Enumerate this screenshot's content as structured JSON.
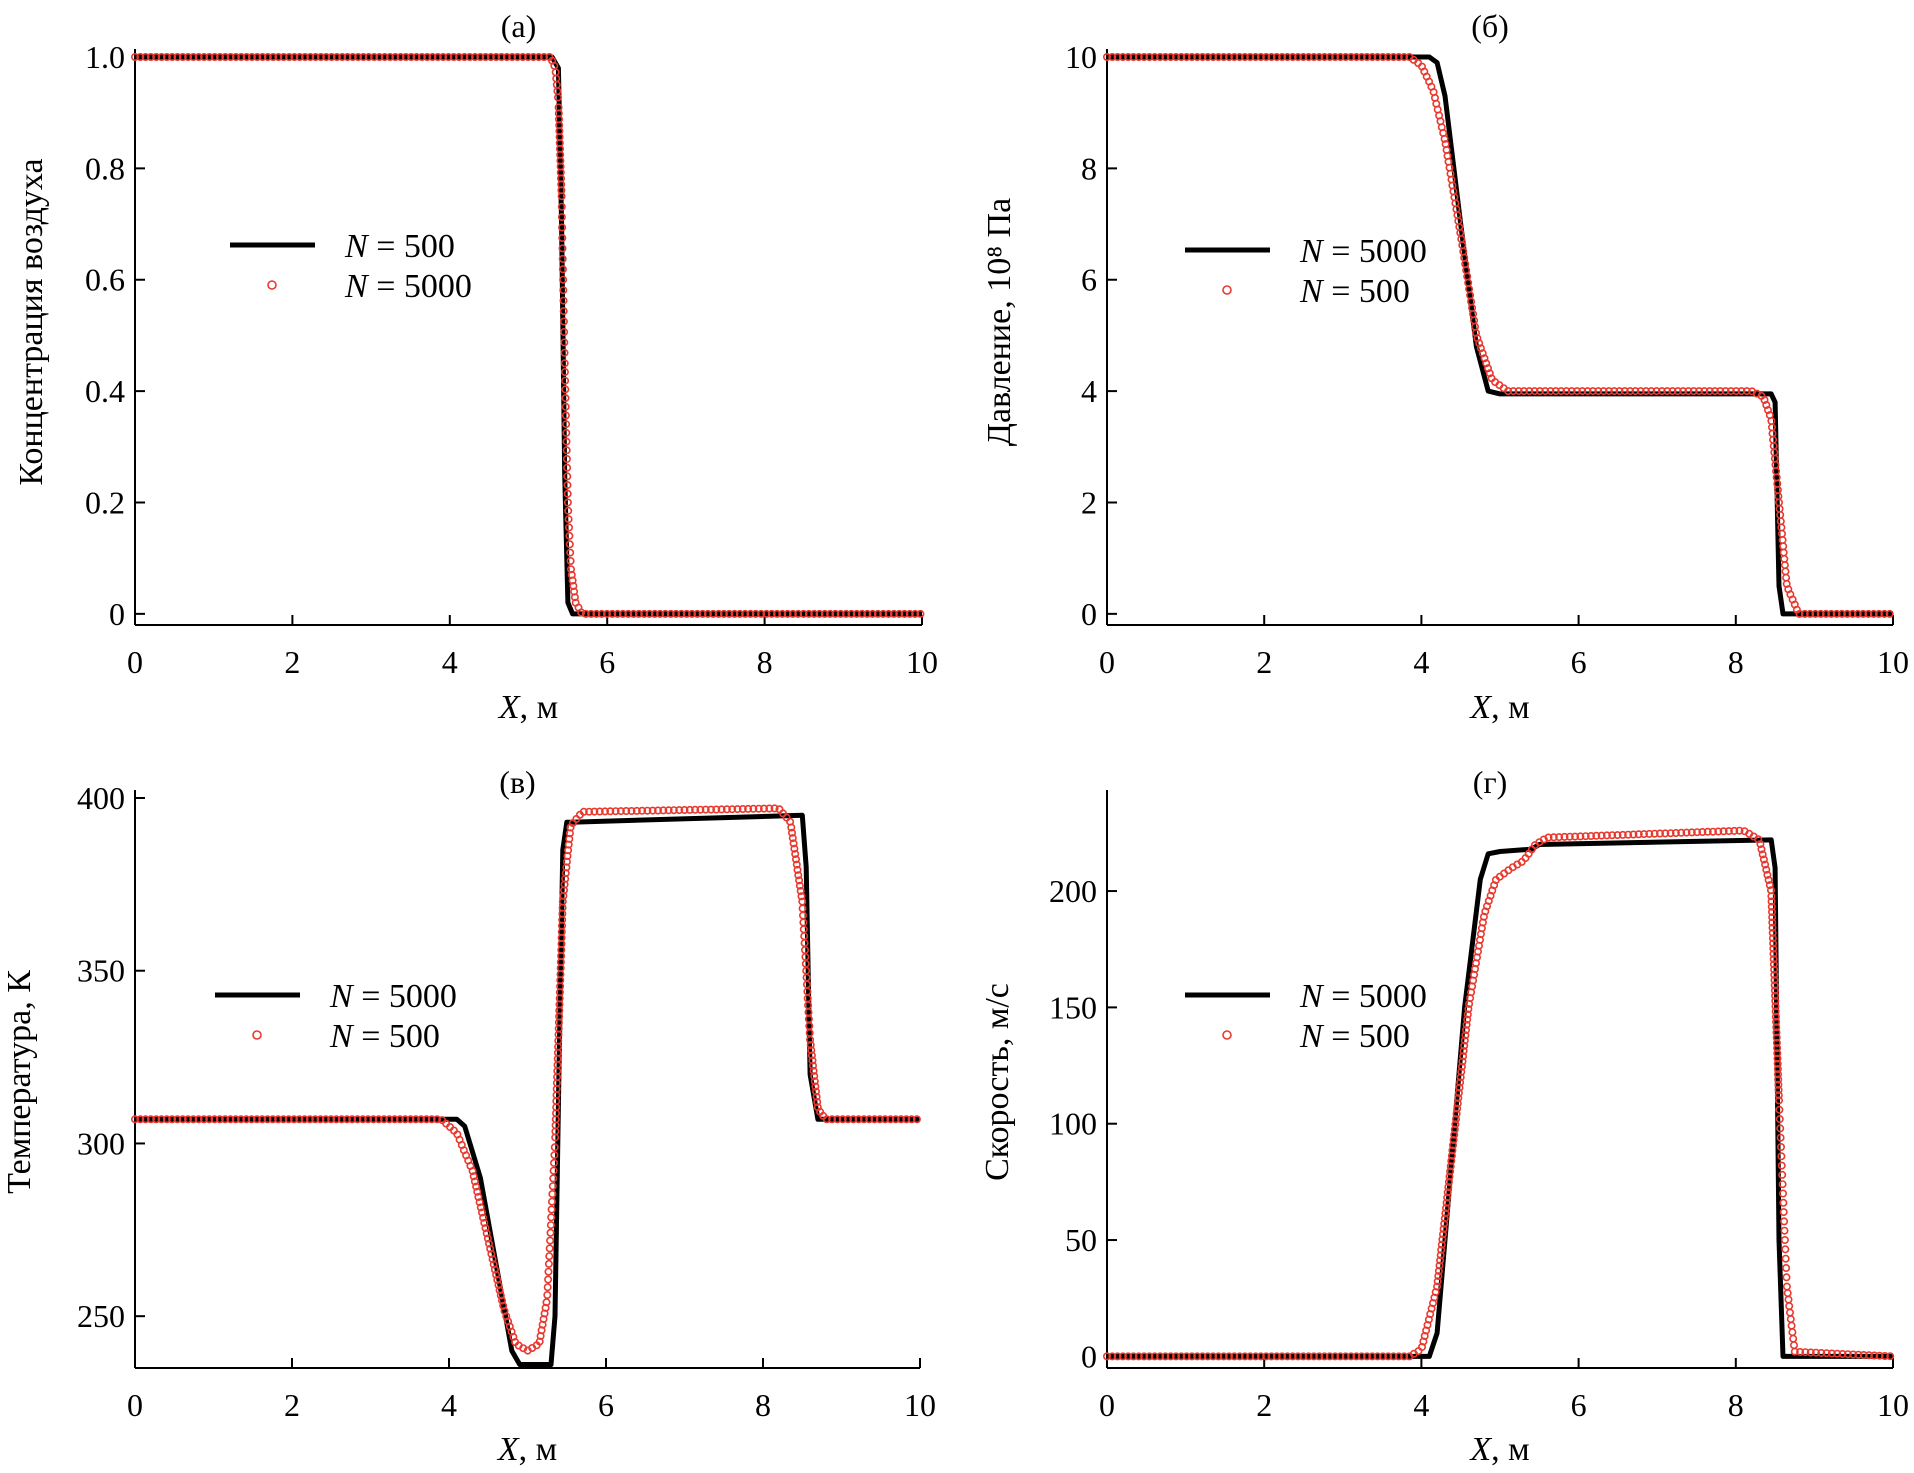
{
  "chart_data": [
    {
      "type": "line",
      "title": "(а)",
      "xlabel_var": "X",
      "xlabel_unit": ", м",
      "ylabel": "Концентрация воздуха",
      "xlim": [
        0,
        10
      ],
      "ylim": [
        -0.02,
        1.0
      ],
      "xticks": [
        0,
        2,
        4,
        6,
        8,
        10
      ],
      "xtick_labels": [
        "0",
        "2",
        "4",
        "6",
        "8",
        "10"
      ],
      "yticks": [
        0,
        0.2,
        0.4,
        0.6,
        0.8,
        1.0
      ],
      "ytick_labels": [
        "0",
        "0.2",
        "0.4",
        "0.6",
        "0.8",
        "1.0"
      ],
      "legend_position": "center-left",
      "series": [
        {
          "name_var": "N",
          "name_value": " = 500",
          "style": "line",
          "color": "#000000",
          "x": [
            0,
            5.3,
            5.38,
            5.42,
            5.46,
            5.5,
            5.56,
            10
          ],
          "y": [
            1.0,
            1.0,
            0.98,
            0.7,
            0.25,
            0.02,
            0.0,
            0.0
          ]
        },
        {
          "name_var": "N",
          "name_value": " = 5000",
          "style": "markers",
          "color": "#e8392f",
          "x": [
            0,
            5.28,
            5.34,
            5.38,
            5.42,
            5.46,
            5.5,
            5.54,
            5.6,
            5.68,
            10
          ],
          "y": [
            1.0,
            1.0,
            0.98,
            0.92,
            0.75,
            0.45,
            0.2,
            0.08,
            0.02,
            0.0,
            0.0
          ]
        }
      ]
    },
    {
      "type": "line",
      "title": "(б)",
      "xlabel_var": "X",
      "xlabel_unit": ", м",
      "ylabel": "Давление, 10⁸ Па",
      "xlim": [
        0,
        10
      ],
      "ylim": [
        -0.2,
        10
      ],
      "xticks": [
        0,
        2,
        4,
        6,
        8,
        10
      ],
      "xtick_labels": [
        "0",
        "2",
        "4",
        "6",
        "8",
        "10"
      ],
      "yticks": [
        0,
        2,
        4,
        6,
        8,
        10
      ],
      "ytick_labels": [
        "0",
        "2",
        "4",
        "6",
        "8",
        "10"
      ],
      "legend_position": "center-left",
      "series": [
        {
          "name_var": "N",
          "name_value": " = 5000",
          "style": "line",
          "color": "#000000",
          "x": [
            0,
            4.1,
            4.2,
            4.3,
            4.5,
            4.7,
            4.85,
            5.0,
            8.45,
            8.5,
            8.55,
            8.6,
            10
          ],
          "y": [
            10,
            10,
            9.9,
            9.3,
            7.0,
            4.8,
            4.0,
            3.95,
            3.95,
            3.8,
            0.5,
            0.0,
            0.0
          ]
        },
        {
          "name_var": "N",
          "name_value": " = 500",
          "style": "markers",
          "color": "#e8392f",
          "x": [
            0,
            3.85,
            4.0,
            4.15,
            4.3,
            4.5,
            4.7,
            4.9,
            5.1,
            8.2,
            8.35,
            8.45,
            8.55,
            8.65,
            8.8,
            10
          ],
          "y": [
            10,
            10,
            9.85,
            9.4,
            8.5,
            6.8,
            5.0,
            4.2,
            4.0,
            4.0,
            3.9,
            3.5,
            2.0,
            0.5,
            0.0,
            0.0
          ]
        }
      ]
    },
    {
      "type": "line",
      "title": "(в)",
      "xlabel_var": "X",
      "xlabel_unit": ", м",
      "ylabel": "Температура, К",
      "xlim": [
        0,
        10
      ],
      "ylim": [
        235,
        400
      ],
      "xticks": [
        0,
        2,
        4,
        6,
        8,
        10
      ],
      "xtick_labels": [
        "0",
        "2",
        "4",
        "6",
        "8",
        "10"
      ],
      "yticks": [
        250,
        300,
        350,
        400
      ],
      "ytick_labels": [
        "250",
        "300",
        "350",
        "400"
      ],
      "legend_position": "center-left",
      "series": [
        {
          "name_var": "N",
          "name_value": " = 5000",
          "style": "line",
          "color": "#000000",
          "x": [
            0,
            4.1,
            4.2,
            4.4,
            4.6,
            4.8,
            4.9,
            5.3,
            5.35,
            5.4,
            5.45,
            5.5,
            5.55,
            8.5,
            8.55,
            8.6,
            8.7,
            10
          ],
          "y": [
            307,
            307,
            305,
            290,
            265,
            240,
            236,
            236,
            250,
            320,
            385,
            393,
            393,
            395,
            380,
            320,
            307,
            307
          ]
        },
        {
          "name_var": "N",
          "name_value": " = 500",
          "style": "markers",
          "color": "#e8392f",
          "x": [
            0,
            3.9,
            4.1,
            4.3,
            4.5,
            4.7,
            4.85,
            5.0,
            5.15,
            5.25,
            5.35,
            5.45,
            5.55,
            5.7,
            8.2,
            8.35,
            8.5,
            8.6,
            8.7,
            8.8,
            10
          ],
          "y": [
            307,
            307,
            303,
            292,
            272,
            252,
            242,
            240,
            242,
            255,
            300,
            370,
            392,
            396,
            397,
            393,
            370,
            330,
            310,
            307,
            307
          ]
        }
      ]
    },
    {
      "type": "line",
      "title": "(г)",
      "xlabel_var": "X",
      "xlabel_unit": ", м",
      "ylabel": "Скорость, м/с",
      "xlim": [
        0,
        10
      ],
      "ylim": [
        -5,
        240
      ],
      "xticks": [
        0,
        2,
        4,
        6,
        8,
        10
      ],
      "xtick_labels": [
        "0",
        "2",
        "4",
        "6",
        "8",
        "10"
      ],
      "yticks": [
        0,
        50,
        100,
        150,
        200
      ],
      "ytick_labels": [
        "0",
        "50",
        "100",
        "150",
        "200"
      ],
      "legend_position": "center-left",
      "series": [
        {
          "name_var": "N",
          "name_value": " = 5000",
          "style": "line",
          "color": "#000000",
          "x": [
            0,
            4.1,
            4.2,
            4.35,
            4.55,
            4.75,
            4.85,
            5.0,
            5.4,
            5.5,
            8.45,
            8.5,
            8.55,
            8.6,
            10
          ],
          "y": [
            0,
            0,
            10,
            70,
            150,
            205,
            216,
            217,
            218,
            220,
            222,
            210,
            50,
            0,
            0
          ]
        },
        {
          "name_var": "N",
          "name_value": " = 500",
          "style": "markers",
          "color": "#e8392f",
          "x": [
            0,
            3.85,
            4.0,
            4.2,
            4.4,
            4.6,
            4.8,
            4.95,
            5.15,
            5.3,
            5.45,
            5.6,
            8.1,
            8.3,
            8.45,
            8.55,
            8.65,
            8.75,
            10
          ],
          "y": [
            0,
            0,
            3,
            30,
            90,
            150,
            190,
            205,
            210,
            213,
            220,
            223,
            226,
            222,
            200,
            110,
            30,
            2,
            0
          ]
        }
      ]
    }
  ]
}
